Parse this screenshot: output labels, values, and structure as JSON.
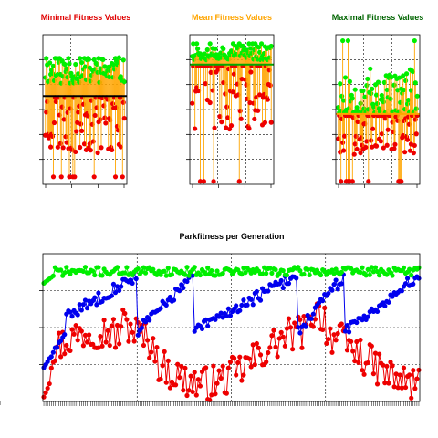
{
  "chart_data": [
    {
      "type": "scatter",
      "title": "Minimal Fitness Values",
      "title_color": "#e00000",
      "xlim": [
        0,
        100
      ],
      "ylim": [
        0,
        100
      ],
      "grid": true,
      "reference_line": 59,
      "reference_color": "#000000",
      "stem_color": "#ffa500",
      "series": [
        {
          "color": "#00ee00",
          "seed": 11,
          "count": 90,
          "center": 76,
          "spread": 18,
          "dir": 1
        },
        {
          "color": "#ee0000",
          "seed": 23,
          "count": 90,
          "center": 45,
          "spread": 30,
          "dir": -1
        }
      ]
    },
    {
      "type": "scatter",
      "title": "Mean Fitness Values",
      "title_color": "#ffa500",
      "xlim": [
        0,
        100
      ],
      "ylim": [
        0,
        100
      ],
      "grid": true,
      "reference_line": 80,
      "reference_color": "#00aa00",
      "stem_color": "#ffa500",
      "series": [
        {
          "color": "#00ee00",
          "seed": 37,
          "count": 90,
          "center": 88,
          "spread": 10,
          "dir": 1
        },
        {
          "color": "#ee0000",
          "seed": 41,
          "count": 90,
          "center": 72,
          "spread": 45,
          "dir": -1
        }
      ]
    },
    {
      "type": "scatter",
      "title": "Maximal Fitness Values",
      "title_color": "#006400",
      "xlim": [
        0,
        100
      ],
      "ylim": [
        0,
        100
      ],
      "grid": true,
      "reference_line": 47,
      "reference_color": "#ffa500",
      "stem_color": "#ffa500",
      "series": [
        {
          "color": "#00ee00",
          "seed": 53,
          "count": 90,
          "center": 60,
          "spread": 35,
          "dir": 1
        },
        {
          "color": "#ee0000",
          "seed": 67,
          "count": 90,
          "center": 40,
          "spread": 25,
          "dir": -1
        }
      ]
    },
    {
      "type": "line",
      "title": "Parkfitness per Generation",
      "title_color": "#000000",
      "xlim": [
        0,
        200
      ],
      "ylim": [
        0,
        100
      ],
      "grid": true,
      "series": [
        {
          "color": "#00ee00",
          "seed": 71,
          "count": 200,
          "base": 88,
          "noise": 3,
          "pattern": "flat"
        },
        {
          "color": "#0000ee",
          "seed": 83,
          "count": 200,
          "base": 55,
          "noise": 4,
          "pattern": "sawtooth"
        },
        {
          "color": "#ee0000",
          "seed": 97,
          "count": 200,
          "base": 30,
          "noise": 12,
          "pattern": "wave"
        }
      ]
    }
  ]
}
